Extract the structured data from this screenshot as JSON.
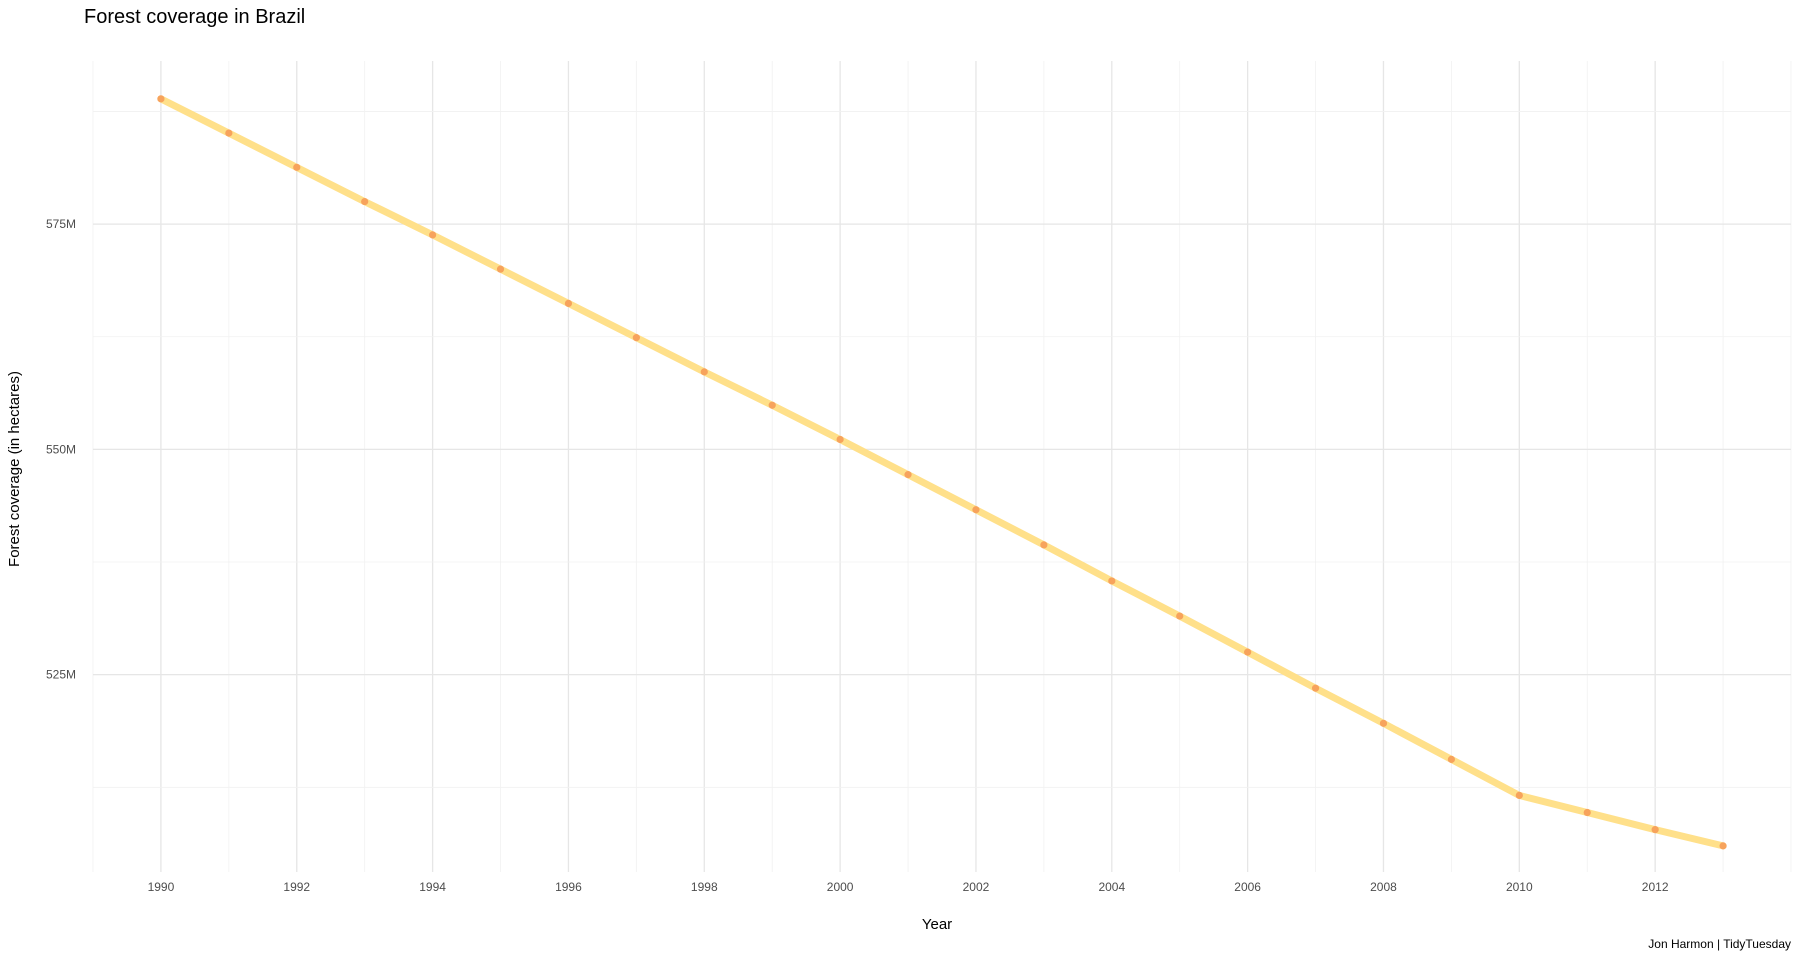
{
  "chart_data": {
    "type": "line",
    "title": "Forest coverage in Brazil",
    "xlabel": "Year",
    "ylabel": "Forest coverage (in hectares)",
    "caption": "Jon Harmon | TidyTuesday",
    "x": [
      1990,
      1991,
      1992,
      1993,
      1994,
      1995,
      1996,
      1997,
      1998,
      1999,
      2000,
      2001,
      2002,
      2003,
      2004,
      2005,
      2006,
      2007,
      2008,
      2009,
      2010,
      2011,
      2012,
      2013
    ],
    "series": [
      {
        "values": [
          588.9,
          585.1,
          581.3,
          577.5,
          573.8,
          570.0,
          566.2,
          562.4,
          558.6,
          554.9,
          551.1,
          547.2,
          543.3,
          539.4,
          535.4,
          531.5,
          527.5,
          523.5,
          519.6,
          515.6,
          511.6,
          509.7,
          507.8,
          506.0
        ],
        "unit": "M hectares",
        "line_color": "#FFE08A",
        "point_color": "#F7A35C"
      }
    ],
    "xticks": [
      1990,
      1992,
      1994,
      1996,
      1998,
      2000,
      2002,
      2004,
      2006,
      2008,
      2010,
      2012
    ],
    "xtick_labels": [
      "1990",
      "1992",
      "1994",
      "1996",
      "1998",
      "2000",
      "2002",
      "2004",
      "2006",
      "2008",
      "2010",
      "2012"
    ],
    "yticks": [
      525,
      550,
      575
    ],
    "ytick_labels": [
      "525M",
      "550M",
      "575M"
    ],
    "xlim": [
      1989,
      2014
    ],
    "ylim": [
      503.1,
      593.1
    ],
    "grid": true,
    "legend": "none"
  }
}
